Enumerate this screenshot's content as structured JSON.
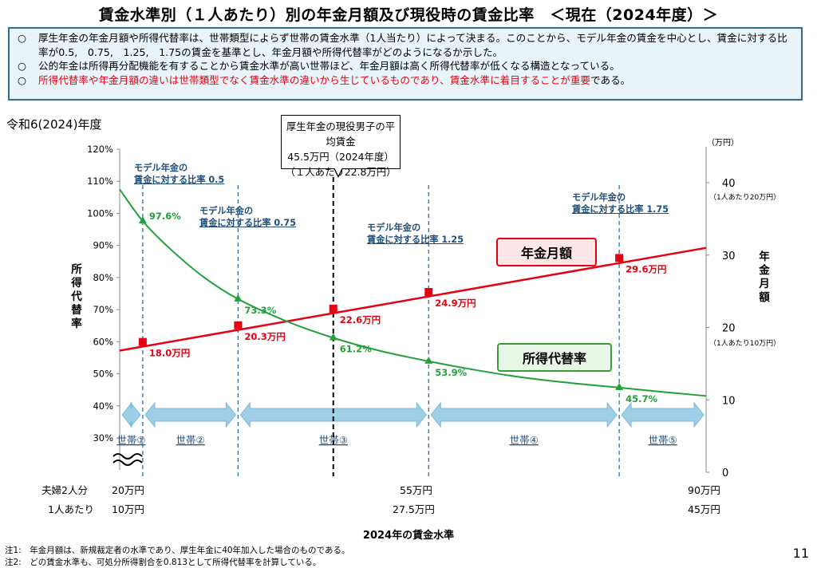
{
  "page": {
    "title": "賃金水準別（１人あたり）別の年金月額及び現役時の賃金比率　＜現在（2024年度）＞",
    "summary": [
      {
        "mark": "○",
        "text": "厚生年金の年金月額や所得代替率は、世帯類型によらず世帯の賃金水準（1人当たり）によって決まる。このことから、モデル年金の賃金を中心とし、賃金に対する比率が0.5,　0.75,　1.25,　1.75の賃金を基準とし、年金月額や所得代替率がどのようになるか示した。",
        "red_part": "",
        "tail": ""
      },
      {
        "mark": "○",
        "text": "公的年金は所得再分配機能を有することから賃金水準が高い世帯ほど、年金月額は高く所得代替率が低くなる構造となっている。",
        "red_part": "",
        "tail": ""
      },
      {
        "mark": "○",
        "text": "",
        "red_part": "所得代替率や年金月額の違いは世帯類型でなく賃金水準の違いから生じているものであり、賃金水準に着目することが重要",
        "tail": "である。"
      }
    ],
    "year_label": "令和6(2024)年度",
    "callout": [
      "厚生年金の現役男子の平均賃金",
      "45.5万円（2024年度）",
      "（１人あたり22.8万円）"
    ],
    "tag_pension": "年金月額",
    "tag_rate": "所得代替率",
    "ratio_labels": [
      {
        "line1": "モデル年金の",
        "line2": "賃金に対する比率 0.5"
      },
      {
        "line1": "モデル年金の",
        "line2": "賃金に対する比率 0.75"
      },
      {
        "line1": "モデル年金の",
        "line2": "賃金に対する比率 1.25"
      },
      {
        "line1": "モデル年金の",
        "line2": "賃金に対する比率 1.75"
      }
    ],
    "row_couple_label": "夫婦2人分",
    "row_single_label": "1人あたり",
    "couple_ticks": [
      "20万円",
      "55万円",
      "90万円"
    ],
    "single_ticks": [
      "10万円",
      "27.5万円",
      "45万円"
    ],
    "x_caption": "2024年の賃金水準",
    "notes": [
      "注1:　年金月額は、新規裁定者の水準であり、厚生年金に40年加入した場合のものである。",
      "注2:　どの賃金水準も、可処分所得割合を0.813として所得代替率を計算している。"
    ],
    "page_number": "11",
    "left_axis_title": "所得代替率",
    "right_axis_title": "年金月額",
    "right_axis_unit": "（万円）",
    "right_axis_note_40": "（1人あたり20万円）",
    "right_axis_note_20": "（1人あたり10万円）"
  },
  "colors": {
    "pension": "#e60012",
    "rate": "#22a03a",
    "household": "#9ecfe6",
    "guide": "#2f6ea5",
    "ratio_text": "#1f4e79"
  },
  "chart_data": {
    "type": "line",
    "x_label": "2024年の賃金水準",
    "x_range_couple_man_yen": [
      20,
      90
    ],
    "left_axis": {
      "label": "所得代替率",
      "range": [
        30,
        120
      ],
      "ticks": [
        "120%",
        "110%",
        "100%",
        "90%",
        "80%",
        "70%",
        "60%",
        "50%",
        "40%",
        "30%"
      ],
      "tick_values": [
        120,
        110,
        100,
        90,
        80,
        70,
        60,
        50,
        40,
        30
      ]
    },
    "right_axis": {
      "label": "年金月額",
      "unit": "（万円）",
      "range": [
        0,
        45
      ],
      "ticks": [
        "40",
        "30",
        "20",
        "10",
        "0"
      ],
      "tick_values": [
        40,
        30,
        20,
        10,
        0
      ]
    },
    "series": [
      {
        "name": "年金月額",
        "axis": "right",
        "line_x": [
          20,
          90
        ],
        "line_y": [
          16.8,
          31.0
        ],
        "points": [
          {
            "x": 22.75,
            "y": 18.0,
            "label": "18.0万円"
          },
          {
            "x": 34.13,
            "y": 20.3,
            "label": "20.3万円"
          },
          {
            "x": 45.5,
            "y": 22.6,
            "label": "22.6万円"
          },
          {
            "x": 56.88,
            "y": 24.9,
            "label": "24.9万円"
          },
          {
            "x": 79.63,
            "y": 29.6,
            "label": "29.6万円"
          }
        ]
      },
      {
        "name": "所得代替率",
        "axis": "left",
        "curve": [
          [
            20,
            107.5
          ],
          [
            22.75,
            97.6
          ],
          [
            26,
            89
          ],
          [
            30,
            80.2
          ],
          [
            34.13,
            73.3
          ],
          [
            40,
            66.3
          ],
          [
            45.5,
            61.2
          ],
          [
            51,
            57.2
          ],
          [
            56.88,
            53.9
          ],
          [
            62,
            51.4
          ],
          [
            68,
            48.9
          ],
          [
            74,
            47.1
          ],
          [
            79.63,
            45.7
          ],
          [
            85,
            44.3
          ],
          [
            90,
            43.1
          ]
        ],
        "points": [
          {
            "x": 22.75,
            "y": 97.6,
            "label": "97.6%"
          },
          {
            "x": 34.13,
            "y": 73.3,
            "label": "73.3%"
          },
          {
            "x": 45.5,
            "y": 61.2,
            "label": "61.2%"
          },
          {
            "x": 56.88,
            "y": 53.9,
            "label": "53.9%"
          },
          {
            "x": 79.63,
            "y": 45.7,
            "label": "45.7%"
          }
        ]
      }
    ],
    "average_wage_marker_x": 45.5,
    "ratio_guides_x": [
      22.75,
      34.13,
      56.88,
      79.63
    ],
    "households": [
      {
        "label": "世帯①",
        "from": 20,
        "to": 22.75
      },
      {
        "label": "世帯②",
        "from": 22.75,
        "to": 34.13
      },
      {
        "label": "世帯③",
        "from": 34.13,
        "to": 56.88
      },
      {
        "label": "世帯④",
        "from": 56.88,
        "to": 79.63
      },
      {
        "label": "世帯⑤",
        "from": 79.63,
        "to": 90
      }
    ]
  }
}
